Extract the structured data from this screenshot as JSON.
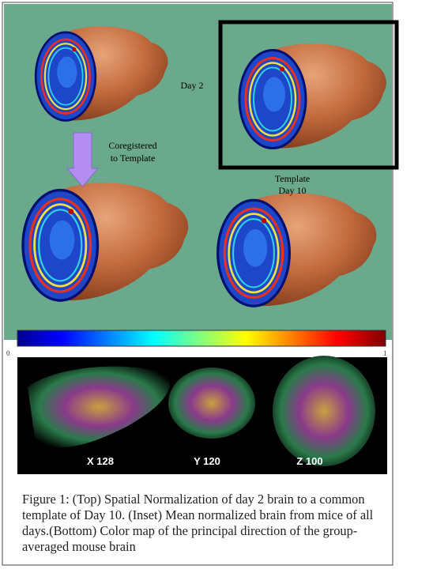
{
  "figure": {
    "labels": {
      "day2": "Day 2",
      "coregistered": [
        "Coregistered",
        "to Template"
      ],
      "template": [
        "Template",
        "Day 10"
      ]
    },
    "colorbar": {
      "ticks": [
        0,
        1
      ]
    },
    "slices": [
      "X 128",
      "Y 120",
      "Z 100"
    ],
    "caption": "Figure 1: (Top) Spatial Normalization of day 2 brain to a common template of Day 10.  (Inset) Mean normalized brain from mice of all days.(Bottom) Color map of the principal direction of the group-averaged mouse brain"
  }
}
